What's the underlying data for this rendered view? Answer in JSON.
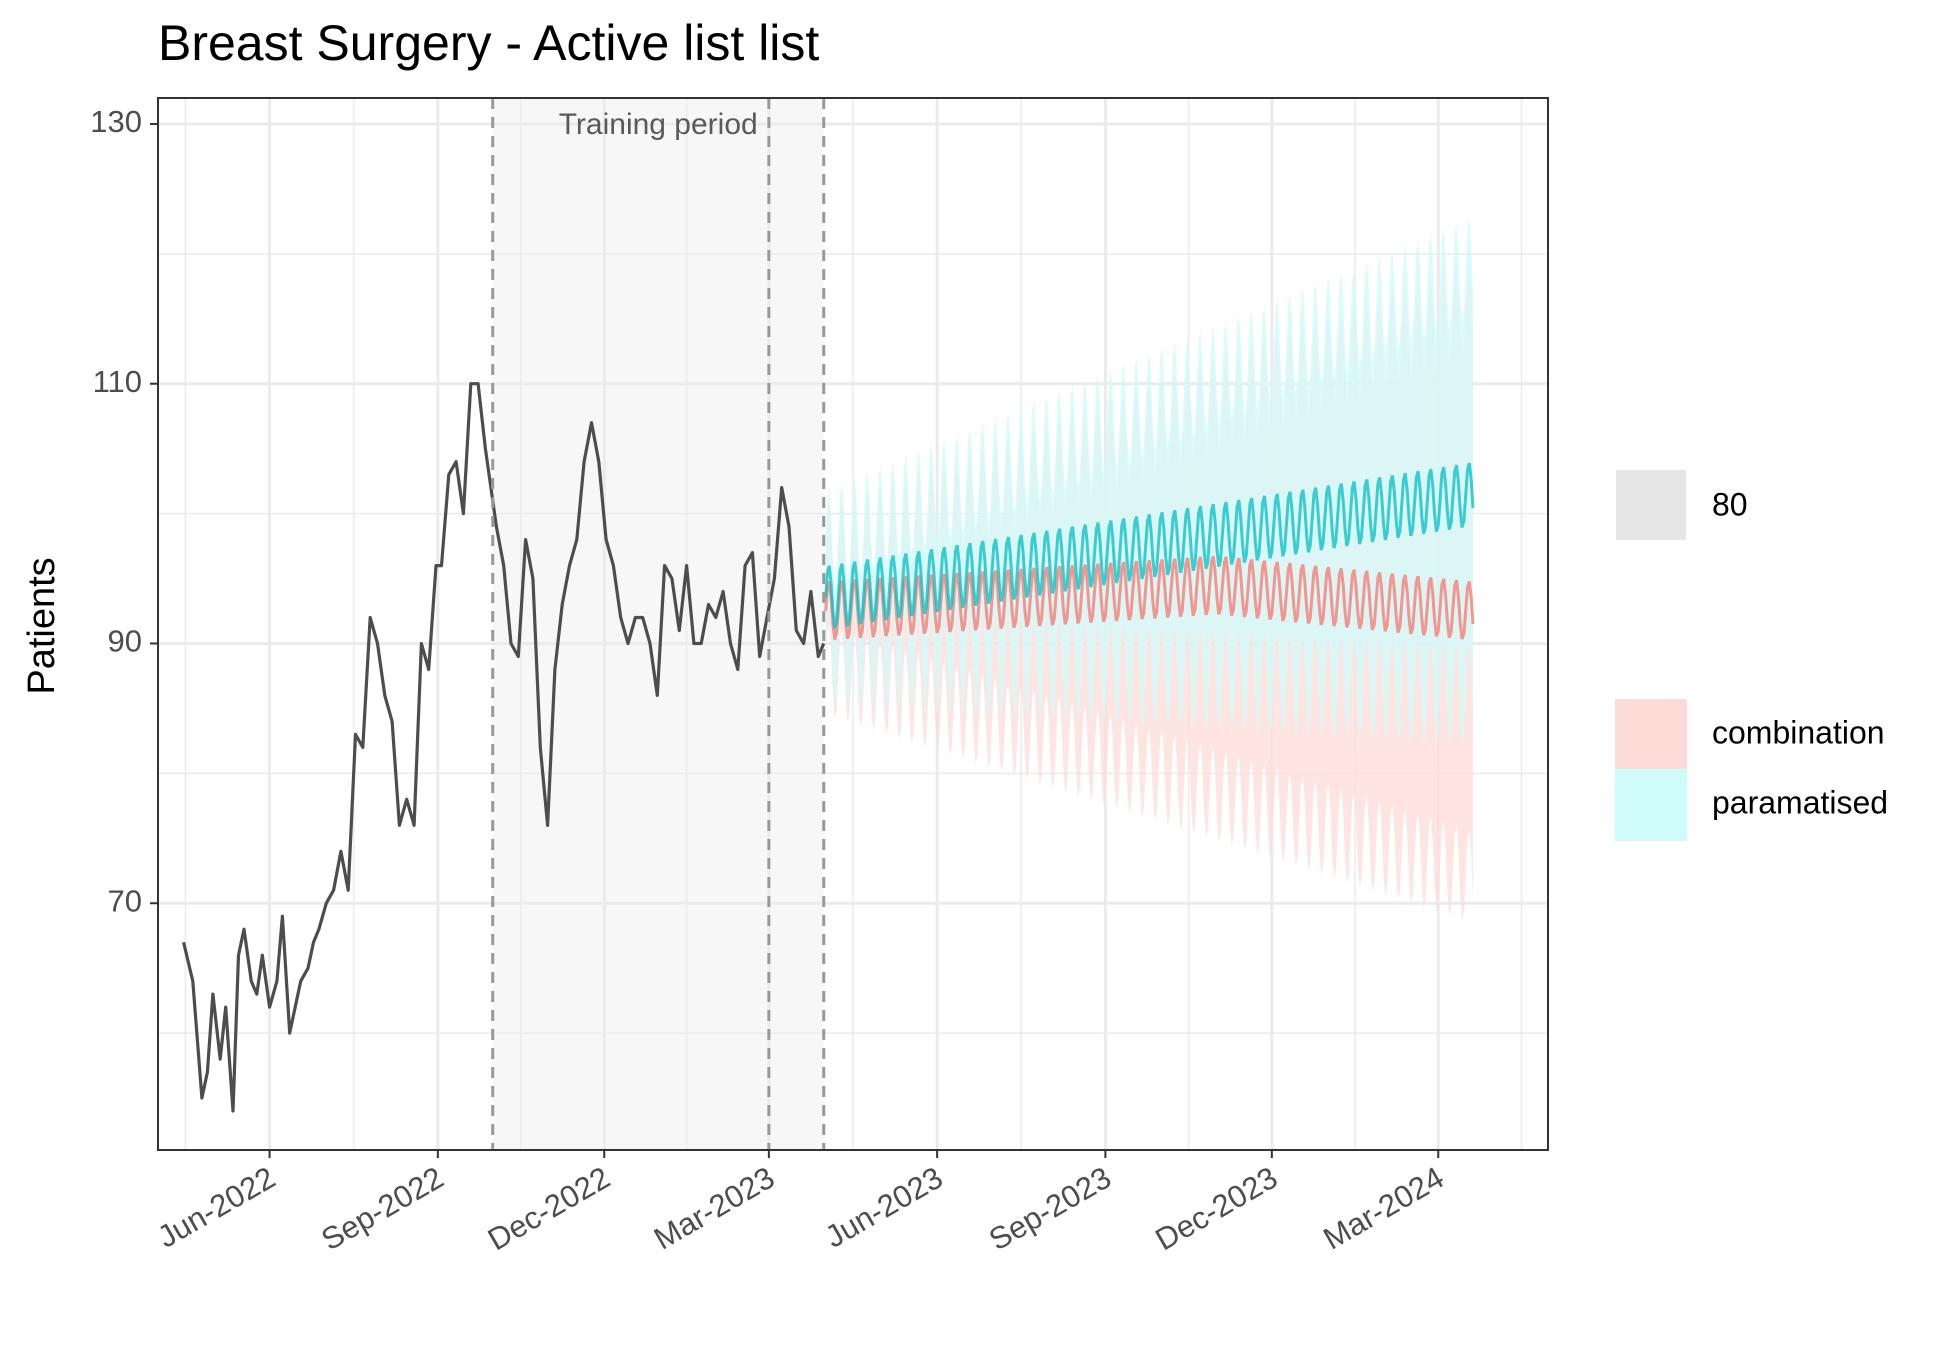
{
  "chart_data": {
    "type": "line",
    "title": "Breast Surgery - Active list list",
    "xlabel": "",
    "ylabel": "Patients",
    "x_range": [
      "2022-04-01",
      "2024-04-30"
    ],
    "ylim": [
      51,
      132
    ],
    "y_ticks": [
      70,
      90,
      110,
      130
    ],
    "x_ticks": [
      {
        "date": "2022-06-01",
        "label": "Jun-2022"
      },
      {
        "date": "2022-09-01",
        "label": "Sep-2022"
      },
      {
        "date": "2022-12-01",
        "label": "Dec-2022"
      },
      {
        "date": "2023-03-01",
        "label": "Mar-2023"
      },
      {
        "date": "2023-06-01",
        "label": "Jun-2023"
      },
      {
        "date": "2023-09-01",
        "label": "Sep-2023"
      },
      {
        "date": "2023-12-01",
        "label": "Dec-2023"
      },
      {
        "date": "2024-03-01",
        "label": "Mar-2024"
      }
    ],
    "grid": true,
    "training_period": {
      "label": "Training period",
      "start": "2022-10-01",
      "end": "2023-03-31",
      "marker_dates": [
        "2022-10-01",
        "2023-03-01",
        "2023-03-31"
      ]
    },
    "actual": {
      "color": "#4d4d4d",
      "x": [
        "2022-04-15",
        "2022-04-20",
        "2022-04-25",
        "2022-04-28",
        "2022-05-01",
        "2022-05-05",
        "2022-05-08",
        "2022-05-12",
        "2022-05-15",
        "2022-05-18",
        "2022-05-22",
        "2022-05-25",
        "2022-05-28",
        "2022-06-01",
        "2022-06-05",
        "2022-06-08",
        "2022-06-12",
        "2022-06-15",
        "2022-06-18",
        "2022-06-22",
        "2022-06-25",
        "2022-06-28",
        "2022-07-02",
        "2022-07-06",
        "2022-07-10",
        "2022-07-14",
        "2022-07-18",
        "2022-07-22",
        "2022-07-26",
        "2022-07-30",
        "2022-08-03",
        "2022-08-07",
        "2022-08-11",
        "2022-08-15",
        "2022-08-19",
        "2022-08-23",
        "2022-08-27",
        "2022-08-31",
        "2022-09-03",
        "2022-09-07",
        "2022-09-11",
        "2022-09-15",
        "2022-09-19",
        "2022-09-23",
        "2022-09-27",
        "2022-09-30",
        "2022-10-03",
        "2022-10-07",
        "2022-10-11",
        "2022-10-15",
        "2022-10-19",
        "2022-10-23",
        "2022-10-27",
        "2022-10-31",
        "2022-11-04",
        "2022-11-08",
        "2022-11-12",
        "2022-11-16",
        "2022-11-20",
        "2022-11-24",
        "2022-11-28",
        "2022-12-02",
        "2022-12-06",
        "2022-12-10",
        "2022-12-14",
        "2022-12-18",
        "2022-12-22",
        "2022-12-26",
        "2022-12-30",
        "2023-01-03",
        "2023-01-07",
        "2023-01-11",
        "2023-01-15",
        "2023-01-19",
        "2023-01-23",
        "2023-01-27",
        "2023-01-31",
        "2023-02-04",
        "2023-02-08",
        "2023-02-12",
        "2023-02-16",
        "2023-02-20",
        "2023-02-24",
        "2023-02-28",
        "2023-03-04",
        "2023-03-08",
        "2023-03-12",
        "2023-03-16",
        "2023-03-20",
        "2023-03-24",
        "2023-03-28",
        "2023-03-31"
      ],
      "y": [
        67,
        64,
        55,
        57,
        63,
        58,
        62,
        54,
        66,
        68,
        64,
        63,
        66,
        62,
        64,
        69,
        60,
        62,
        64,
        65,
        67,
        68,
        70,
        71,
        74,
        71,
        83,
        82,
        92,
        90,
        86,
        84,
        76,
        78,
        76,
        90,
        88,
        96,
        96,
        103,
        104,
        100,
        110,
        110,
        105,
        102,
        99,
        96,
        90,
        89,
        98,
        95,
        82,
        76,
        88,
        93,
        96,
        98,
        104,
        107,
        104,
        98,
        96,
        92,
        90,
        92,
        92,
        90,
        86,
        96,
        95,
        91,
        96,
        90,
        90,
        93,
        92,
        94,
        90,
        88,
        96,
        97,
        89,
        92,
        95,
        102,
        99,
        91,
        90,
        94,
        89,
        90
      ],
      "note_last_actual": "hist"
    },
    "series": [
      {
        "name": "combination",
        "color": "#f8766d",
        "band_color": "#fddcd8",
        "band_level": "80",
        "start": "2023-04-01",
        "end": "2024-03-20",
        "mean_start": 92.5,
        "mean_peak": 94.5,
        "mean_peak_date": "2023-11-01",
        "mean_end": 92.5,
        "weekly_amplitude": 2.3,
        "lower_start": 88,
        "lower_end": 72,
        "upper_start": 97,
        "upper_end": 116
      },
      {
        "name": "paramatised",
        "color": "#00bfc4",
        "band_color": "#d0fbfb",
        "band_level": "80",
        "start": "2023-04-01",
        "end": "2024-03-20",
        "mean_start": 93.5,
        "mean_end": 101.5,
        "weekly_amplitude": 2.5,
        "lower_start": 89,
        "lower_end": 86,
        "upper_start": 98,
        "upper_end": 119
      }
    ],
    "legend": {
      "position": "right",
      "level_label": "80",
      "entries": [
        "combination",
        "paramatised"
      ]
    }
  }
}
